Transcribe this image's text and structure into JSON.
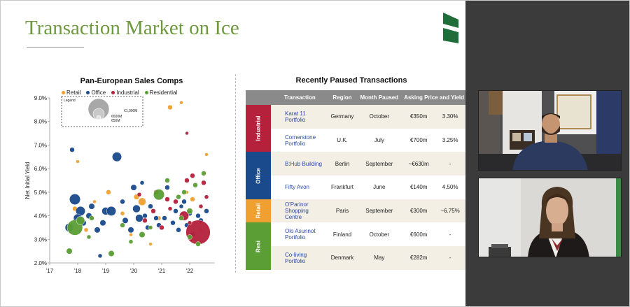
{
  "slide": {
    "title": "Transaction Market on Ice"
  },
  "colors": {
    "title_green": "#6e9a3e",
    "retail": "#f0a030",
    "office": "#1a4a8c",
    "industrial": "#b5203a",
    "residential": "#5a9e35",
    "table_header": "#8a8a8a",
    "row_tint": "#f4efe4"
  },
  "chart": {
    "title": "Pan-European Sales Comps",
    "legend_items": [
      "Retail",
      "Office",
      "Industrial",
      "Residential"
    ],
    "size_legend": {
      "title": "Legend",
      "labels": [
        "€1,000M",
        "€600M",
        "€50M"
      ]
    },
    "ylabel": "Net Initial Yield"
  },
  "chart_data": {
    "type": "scatter",
    "title": "Pan-European Sales Comps",
    "ylabel": "Net Initial Yield",
    "xlabel": "",
    "x_tick_labels": [
      "'17",
      "'18",
      "'19",
      "'20",
      "'21",
      "'22"
    ],
    "y_tick_labels": [
      "9.0%",
      "8.0%",
      "7.0%",
      "6.0%",
      "5.0%",
      "4.0%",
      "3.0%",
      "2.0%"
    ],
    "xlim": [
      2017.0,
      2022.9
    ],
    "ylim": [
      2.0,
      9.0
    ],
    "grid": false,
    "legend_placement": "top",
    "series": [
      {
        "name": "Retail",
        "points": [
          [
            2017.9,
            4.3,
            40
          ],
          [
            2018.0,
            6.3,
            20
          ],
          [
            2018.3,
            3.4,
            30
          ],
          [
            2018.6,
            4.6,
            20
          ],
          [
            2019.1,
            5.0,
            40
          ],
          [
            2019.6,
            4.1,
            30
          ],
          [
            2020.1,
            4.8,
            50
          ],
          [
            2020.3,
            4.6,
            100
          ],
          [
            2020.6,
            2.8,
            20
          ],
          [
            2020.9,
            3.9,
            30
          ],
          [
            2021.3,
            8.6,
            40
          ],
          [
            2021.7,
            8.8,
            20
          ],
          [
            2021.9,
            5.0,
            20
          ],
          [
            2022.1,
            4.7,
            40
          ],
          [
            2022.4,
            3.4,
            20
          ],
          [
            2019.9,
            3.2,
            20
          ],
          [
            2022.6,
            6.6,
            20
          ]
        ]
      },
      {
        "name": "Office",
        "points": [
          [
            2017.7,
            3.5,
            120
          ],
          [
            2017.8,
            6.8,
            40
          ],
          [
            2017.9,
            4.7,
            200
          ],
          [
            2018.1,
            4.2,
            150
          ],
          [
            2018.0,
            3.9,
            120
          ],
          [
            2018.2,
            3.7,
            60
          ],
          [
            2018.4,
            4.0,
            60
          ],
          [
            2018.5,
            4.4,
            60
          ],
          [
            2018.7,
            3.4,
            60
          ],
          [
            2018.9,
            3.7,
            60
          ],
          [
            2019.0,
            4.2,
            100
          ],
          [
            2019.2,
            4.2,
            150
          ],
          [
            2019.4,
            6.5,
            150
          ],
          [
            2019.6,
            4.6,
            40
          ],
          [
            2019.7,
            3.8,
            60
          ],
          [
            2019.9,
            3.4,
            60
          ],
          [
            2020.0,
            5.2,
            60
          ],
          [
            2020.1,
            4.3,
            100
          ],
          [
            2020.2,
            3.9,
            100
          ],
          [
            2020.4,
            4.0,
            40
          ],
          [
            2020.5,
            3.5,
            40
          ],
          [
            2020.6,
            4.4,
            40
          ],
          [
            2020.8,
            3.9,
            40
          ],
          [
            2020.9,
            3.6,
            40
          ],
          [
            2021.1,
            3.9,
            40
          ],
          [
            2021.2,
            5.2,
            40
          ],
          [
            2021.4,
            3.7,
            40
          ],
          [
            2021.5,
            4.2,
            40
          ],
          [
            2021.6,
            3.4,
            40
          ],
          [
            2021.8,
            4.6,
            40
          ],
          [
            2021.9,
            3.6,
            40
          ],
          [
            2022.0,
            4.1,
            40
          ],
          [
            2022.1,
            3.2,
            40
          ],
          [
            2022.3,
            4.0,
            40
          ],
          [
            2022.4,
            3.8,
            40
          ],
          [
            2022.6,
            4.2,
            40
          ],
          [
            2018.8,
            2.3,
            30
          ],
          [
            2020.3,
            5.4,
            30
          ],
          [
            2021.7,
            4.4,
            30
          ]
        ]
      },
      {
        "name": "Industrial",
        "points": [
          [
            2022.3,
            3.3,
            1000
          ],
          [
            2021.8,
            4.0,
            150
          ],
          [
            2021.5,
            4.6,
            40
          ],
          [
            2021.2,
            4.7,
            40
          ],
          [
            2020.8,
            5.0,
            40
          ],
          [
            2020.7,
            4.2,
            40
          ],
          [
            2020.4,
            3.8,
            40
          ],
          [
            2021.0,
            3.5,
            40
          ],
          [
            2021.9,
            5.5,
            40
          ],
          [
            2022.1,
            5.7,
            40
          ],
          [
            2022.5,
            5.4,
            40
          ],
          [
            2022.6,
            4.8,
            30
          ],
          [
            2021.3,
            4.3,
            30
          ],
          [
            2020.2,
            4.9,
            30
          ],
          [
            2022.0,
            3.7,
            30
          ],
          [
            2021.9,
            7.5,
            20
          ],
          [
            2022.4,
            4.4,
            30
          ]
        ]
      },
      {
        "name": "Residential",
        "points": [
          [
            2017.9,
            3.5,
            400
          ],
          [
            2018.1,
            3.8,
            120
          ],
          [
            2017.7,
            2.5,
            60
          ],
          [
            2018.5,
            3.9,
            40
          ],
          [
            2019.2,
            2.4,
            60
          ],
          [
            2019.6,
            3.6,
            40
          ],
          [
            2020.3,
            3.2,
            60
          ],
          [
            2020.9,
            4.9,
            200
          ],
          [
            2021.2,
            5.5,
            40
          ],
          [
            2021.6,
            4.8,
            40
          ],
          [
            2021.8,
            5.0,
            40
          ],
          [
            2022.0,
            4.2,
            60
          ],
          [
            2022.2,
            5.3,
            40
          ],
          [
            2022.5,
            5.8,
            40
          ],
          [
            2022.0,
            3.1,
            40
          ],
          [
            2021.7,
            3.9,
            40
          ],
          [
            2022.3,
            2.8,
            40
          ],
          [
            2020.6,
            3.5,
            30
          ],
          [
            2018.4,
            3.1,
            30
          ],
          [
            2019.9,
            2.9,
            30
          ]
        ]
      }
    ]
  },
  "table": {
    "title": "Recently Paused Transactions",
    "headers": [
      "Transaction",
      "Region",
      "Month Paused",
      "Asking Price and Yield"
    ],
    "categories": [
      {
        "label": "Industrial",
        "color": "#b5203a"
      },
      {
        "label": "Office",
        "color": "#1a4a8c"
      },
      {
        "label": "Retail",
        "color": "#f0a030"
      },
      {
        "label": "Resi",
        "color": "#5a9e35"
      }
    ],
    "rows": [
      {
        "name": "Karat 11 Portfolio",
        "region": "Germany",
        "month": "October",
        "price": "€350m",
        "yield": "3.30%"
      },
      {
        "name": "Cornerstone Portfolio",
        "region": "U.K.",
        "month": "July",
        "price": "€700m",
        "yield": "3.25%"
      },
      {
        "name": "B:Hub Building",
        "region": "Berlin",
        "month": "September",
        "price": "~€630m",
        "yield": "-"
      },
      {
        "name": "Fifty Avon",
        "region": "Frankfurt",
        "month": "June",
        "price": "€140m",
        "yield": "4.50%"
      },
      {
        "name": "O'Parinor Shopping Centre",
        "region": "Paris",
        "month": "September",
        "price": "€300m",
        "yield": "~6.75%"
      },
      {
        "name": "Olo Asunnot Portfolio",
        "region": "Finland",
        "month": "October",
        "price": "€600m",
        "yield": "-"
      },
      {
        "name": "Co-living Portfolio",
        "region": "Denmark",
        "month": "May",
        "price": "€282m",
        "yield": "-"
      }
    ]
  }
}
